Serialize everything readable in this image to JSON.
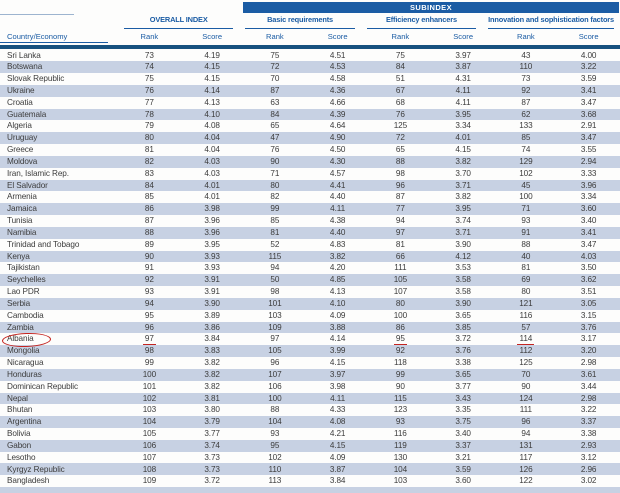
{
  "colors": {
    "accent_blue": "#1b5ca4",
    "header_bar_navy": "#17517f",
    "row_stripe": "#c7d1e3",
    "annotation_red": "#c42420",
    "body_text": "#3c3c3c"
  },
  "header": {
    "subindex_label": "SUBINDEX",
    "country_column_label": "Country/Economy",
    "groups": [
      {
        "label": "OVERALL INDEX"
      },
      {
        "label": "Basic requirements"
      },
      {
        "label": "Efficiency enhancers"
      },
      {
        "label": "Innovation and sophistication factors"
      }
    ],
    "subcolumn_labels": [
      "Rank",
      "Score"
    ]
  },
  "annotations": {
    "color": "#c42420",
    "circle": {
      "target_country": "Albania"
    },
    "underlines": [
      {
        "row": "Albania",
        "column": "overall_rank",
        "value": "97"
      },
      {
        "row": "Albania",
        "column": "efficiency_enhancers_rank",
        "value": "95"
      },
      {
        "row": "Albania",
        "column": "innovation_rank",
        "value": "114"
      }
    ]
  },
  "table": {
    "rows": [
      {
        "country": "Sri Lanka",
        "values": [
          "73",
          "4.19",
          "75",
          "4.51",
          "75",
          "3.97",
          "43",
          "4.00"
        ],
        "shaded": false
      },
      {
        "country": "Botswana",
        "values": [
          "74",
          "4.15",
          "72",
          "4.53",
          "84",
          "3.87",
          "110",
          "3.22"
        ],
        "shaded": true
      },
      {
        "country": "Slovak Republic",
        "values": [
          "75",
          "4.15",
          "70",
          "4.58",
          "51",
          "4.31",
          "73",
          "3.59"
        ],
        "shaded": false
      },
      {
        "country": "Ukraine",
        "values": [
          "76",
          "4.14",
          "87",
          "4.36",
          "67",
          "4.11",
          "92",
          "3.41"
        ],
        "shaded": true
      },
      {
        "country": "Croatia",
        "values": [
          "77",
          "4.13",
          "63",
          "4.66",
          "68",
          "4.11",
          "87",
          "3.47"
        ],
        "shaded": false
      },
      {
        "country": "Guatemala",
        "values": [
          "78",
          "4.10",
          "84",
          "4.39",
          "76",
          "3.95",
          "62",
          "3.68"
        ],
        "shaded": true
      },
      {
        "country": "Algeria",
        "values": [
          "79",
          "4.08",
          "65",
          "4.64",
          "125",
          "3.34",
          "133",
          "2.91"
        ],
        "shaded": false
      },
      {
        "country": "Uruguay",
        "values": [
          "80",
          "4.04",
          "47",
          "4.90",
          "72",
          "4.01",
          "85",
          "3.47"
        ],
        "shaded": true
      },
      {
        "country": "Greece",
        "values": [
          "81",
          "4.04",
          "76",
          "4.50",
          "65",
          "4.15",
          "74",
          "3.55"
        ],
        "shaded": false
      },
      {
        "country": "Moldova",
        "values": [
          "82",
          "4.03",
          "90",
          "4.30",
          "88",
          "3.82",
          "129",
          "2.94"
        ],
        "shaded": true
      },
      {
        "country": "Iran, Islamic Rep.",
        "values": [
          "83",
          "4.03",
          "71",
          "4.57",
          "98",
          "3.70",
          "102",
          "3.33"
        ],
        "shaded": false
      },
      {
        "country": "El Salvador",
        "values": [
          "84",
          "4.01",
          "80",
          "4.41",
          "96",
          "3.71",
          "45",
          "3.96"
        ],
        "shaded": true
      },
      {
        "country": "Armenia",
        "values": [
          "85",
          "4.01",
          "82",
          "4.40",
          "87",
          "3.82",
          "100",
          "3.34"
        ],
        "shaded": false
      },
      {
        "country": "Jamaica",
        "values": [
          "86",
          "3.98",
          "99",
          "4.11",
          "77",
          "3.95",
          "71",
          "3.60"
        ],
        "shaded": true
      },
      {
        "country": "Tunisia",
        "values": [
          "87",
          "3.96",
          "85",
          "4.38",
          "94",
          "3.74",
          "93",
          "3.40"
        ],
        "shaded": false
      },
      {
        "country": "Namibia",
        "values": [
          "88",
          "3.96",
          "81",
          "4.40",
          "97",
          "3.71",
          "91",
          "3.41"
        ],
        "shaded": true
      },
      {
        "country": "Trinidad and Tobago",
        "values": [
          "89",
          "3.95",
          "52",
          "4.83",
          "81",
          "3.90",
          "88",
          "3.47"
        ],
        "shaded": false
      },
      {
        "country": "Kenya",
        "values": [
          "90",
          "3.93",
          "115",
          "3.82",
          "66",
          "4.12",
          "40",
          "4.03"
        ],
        "shaded": true
      },
      {
        "country": "Tajikistan",
        "values": [
          "91",
          "3.93",
          "94",
          "4.20",
          "111",
          "3.53",
          "81",
          "3.50"
        ],
        "shaded": false
      },
      {
        "country": "Seychelles",
        "values": [
          "92",
          "3.91",
          "50",
          "4.85",
          "105",
          "3.58",
          "69",
          "3.62"
        ],
        "shaded": true
      },
      {
        "country": "Lao PDR",
        "values": [
          "93",
          "3.91",
          "98",
          "4.13",
          "107",
          "3.58",
          "80",
          "3.51"
        ],
        "shaded": false
      },
      {
        "country": "Serbia",
        "values": [
          "94",
          "3.90",
          "101",
          "4.10",
          "80",
          "3.90",
          "121",
          "3.05"
        ],
        "shaded": true
      },
      {
        "country": "Cambodia",
        "values": [
          "95",
          "3.89",
          "103",
          "4.09",
          "100",
          "3.65",
          "116",
          "3.15"
        ],
        "shaded": false
      },
      {
        "country": "Zambia",
        "values": [
          "96",
          "3.86",
          "109",
          "3.88",
          "86",
          "3.85",
          "57",
          "3.76"
        ],
        "shaded": true
      },
      {
        "country": "Albania",
        "values": [
          "97",
          "3.84",
          "97",
          "4.14",
          "95",
          "3.72",
          "114",
          "3.17"
        ],
        "shaded": false,
        "circled": true,
        "underline_indices": [
          0,
          4,
          6
        ]
      },
      {
        "country": "Mongolia",
        "values": [
          "98",
          "3.83",
          "105",
          "3.99",
          "92",
          "3.76",
          "112",
          "3.20"
        ],
        "shaded": true
      },
      {
        "country": "Nicaragua",
        "values": [
          "99",
          "3.82",
          "96",
          "4.15",
          "118",
          "3.38",
          "125",
          "2.98"
        ],
        "shaded": false
      },
      {
        "country": "Honduras",
        "values": [
          "100",
          "3.82",
          "107",
          "3.97",
          "99",
          "3.65",
          "70",
          "3.61"
        ],
        "shaded": true
      },
      {
        "country": "Dominican Republic",
        "values": [
          "101",
          "3.82",
          "106",
          "3.98",
          "90",
          "3.77",
          "90",
          "3.44"
        ],
        "shaded": false
      },
      {
        "country": "Nepal",
        "values": [
          "102",
          "3.81",
          "100",
          "4.11",
          "115",
          "3.43",
          "124",
          "2.98"
        ],
        "shaded": true
      },
      {
        "country": "Bhutan",
        "values": [
          "103",
          "3.80",
          "88",
          "4.33",
          "123",
          "3.35",
          "111",
          "3.22"
        ],
        "shaded": false
      },
      {
        "country": "Argentina",
        "values": [
          "104",
          "3.79",
          "104",
          "4.08",
          "93",
          "3.75",
          "96",
          "3.37"
        ],
        "shaded": true
      },
      {
        "country": "Bolivia",
        "values": [
          "105",
          "3.77",
          "93",
          "4.21",
          "116",
          "3.40",
          "94",
          "3.38"
        ],
        "shaded": false
      },
      {
        "country": "Gabon",
        "values": [
          "106",
          "3.74",
          "95",
          "4.15",
          "119",
          "3.37",
          "131",
          "2.93"
        ],
        "shaded": true
      },
      {
        "country": "Lesotho",
        "values": [
          "107",
          "3.73",
          "102",
          "4.09",
          "130",
          "3.21",
          "117",
          "3.12"
        ],
        "shaded": false
      },
      {
        "country": "Kyrgyz Republic",
        "values": [
          "108",
          "3.73",
          "110",
          "3.87",
          "104",
          "3.59",
          "126",
          "2.96"
        ],
        "shaded": true
      },
      {
        "country": "Bangladesh",
        "values": [
          "109",
          "3.72",
          "113",
          "3.84",
          "103",
          "3.60",
          "122",
          "3.02"
        ],
        "shaded": false
      }
    ],
    "partial_row_at_bottom": true
  }
}
